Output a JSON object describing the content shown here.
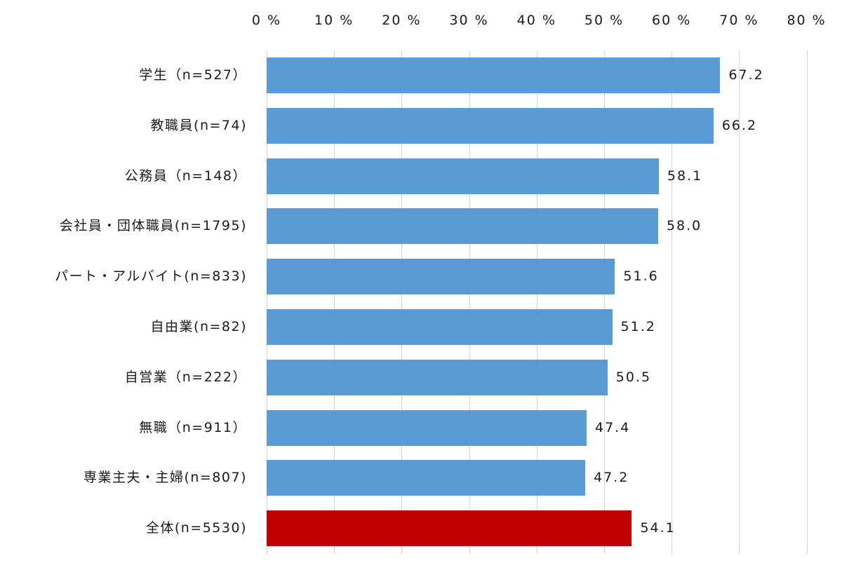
{
  "chart_data": {
    "type": "bar",
    "orientation": "horizontal",
    "title": "",
    "xlabel": "",
    "ylabel": "",
    "xlim": [
      0,
      80
    ],
    "x_ticks": [
      "0 %",
      "10 %",
      "20 %",
      "30 %",
      "40 %",
      "50 %",
      "60 %",
      "70 %",
      "80 %"
    ],
    "x_axis_position": "top",
    "grid": true,
    "legend": null,
    "categories": [
      "学生（n=527）",
      "教職員(n=74)",
      "公務員（n=148）",
      "会社員・団体職員(n=1795)",
      "パート・アルバイト(n=833)",
      "自由業(n=82)",
      "自営業（n=222）",
      "無職（n=911）",
      "専業主夫・主婦(n=807)",
      "全体(n=5530)"
    ],
    "values": [
      67.2,
      66.2,
      58.1,
      58.0,
      51.6,
      51.2,
      50.5,
      47.4,
      47.2,
      54.1
    ],
    "value_labels": [
      "67.2",
      "66.2",
      "58.1",
      "58.0",
      "51.6",
      "51.2",
      "50.5",
      "47.4",
      "47.2",
      "54.1"
    ],
    "bar_colors": [
      "#5b9bd5",
      "#5b9bd5",
      "#5b9bd5",
      "#5b9bd5",
      "#5b9bd5",
      "#5b9bd5",
      "#5b9bd5",
      "#5b9bd5",
      "#5b9bd5",
      "#c00000"
    ]
  },
  "colors": {
    "bar_default": "#5b9bd5",
    "bar_highlight": "#c00000",
    "gridline": "#d4d4d4",
    "text": "#1a1a1a"
  }
}
